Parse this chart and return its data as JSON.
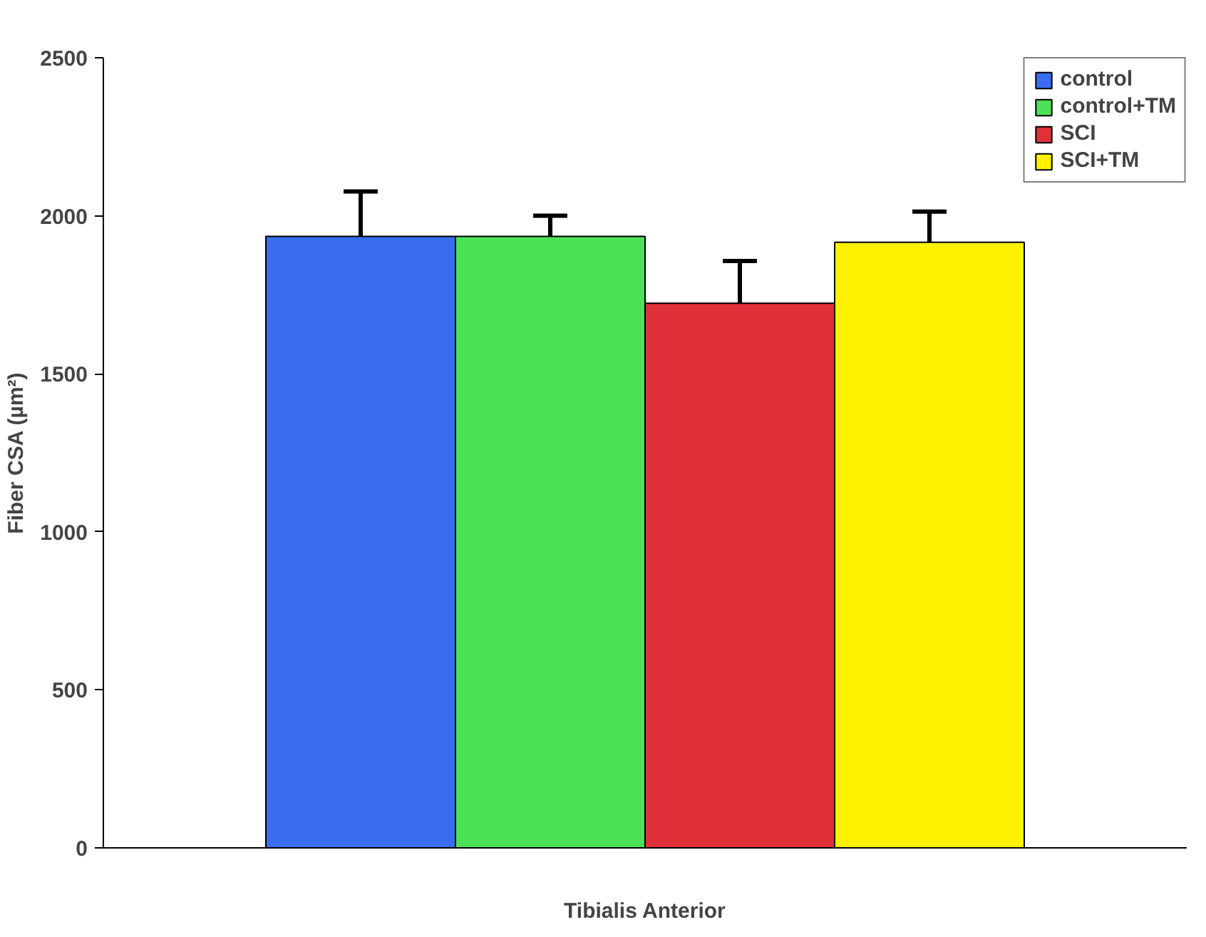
{
  "chart_data": {
    "type": "bar",
    "xlabel": "Tibialis Anterior",
    "ylabel": "Fiber CSA (µm²)",
    "categories": [
      null
    ],
    "series": [
      {
        "name": "control",
        "color": "#3a6cf0",
        "values": [
          1935
        ],
        "errors": [
          [
            1935,
            2077
          ]
        ]
      },
      {
        "name": "control+TM",
        "color": "#4ce157",
        "values": [
          1935
        ],
        "errors": [
          [
            1935,
            2000
          ]
        ]
      },
      {
        "name": "SCI",
        "color": "#e0303a",
        "values": [
          1723
        ],
        "errors": [
          [
            1723,
            1857
          ]
        ]
      },
      {
        "name": "SCI+TM",
        "color": "#fff200",
        "values": [
          1916
        ],
        "errors": [
          [
            1916,
            2013
          ]
        ]
      }
    ],
    "ylim": [
      0,
      2500
    ],
    "yticks": [
      0,
      500,
      1000,
      1500,
      2000,
      2500
    ],
    "grid": false,
    "legend": "top right"
  }
}
